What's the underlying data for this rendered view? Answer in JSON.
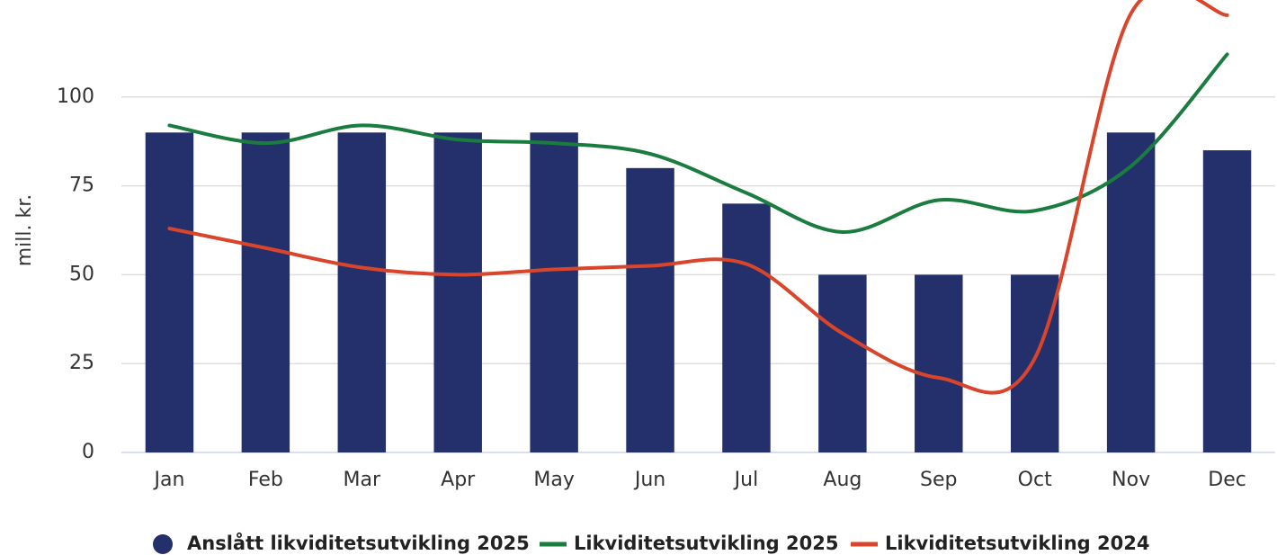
{
  "chart_data": {
    "type": "bar-line",
    "y_label": "mill. kr.",
    "categories": [
      "Jan",
      "Feb",
      "Mar",
      "Apr",
      "May",
      "Jun",
      "Jul",
      "Aug",
      "Sep",
      "Oct",
      "Nov",
      "Dec"
    ],
    "ylim": [
      0,
      125
    ],
    "yticks": [
      0,
      25,
      50,
      75,
      100
    ],
    "grid": true,
    "series": [
      {
        "name": "Anslått likviditetsutvikling 2025",
        "type": "bar",
        "color": "#23306b",
        "values": [
          90,
          90,
          90,
          90,
          90,
          80,
          70,
          50,
          50,
          50,
          90,
          85
        ]
      },
      {
        "name": "Likviditetsutvikling 2025",
        "type": "line",
        "color": "#1a7c3e",
        "values": [
          92,
          87,
          92,
          88,
          87,
          84,
          73,
          62,
          71,
          68,
          80.5,
          112
        ]
      },
      {
        "name": "Likviditetsutvikling 2024",
        "type": "line",
        "color": "#d9452b",
        "values": [
          63,
          57.5,
          52,
          50,
          51.5,
          52.5,
          53,
          33.5,
          21,
          26.5,
          123.5,
          123
        ]
      }
    ]
  }
}
